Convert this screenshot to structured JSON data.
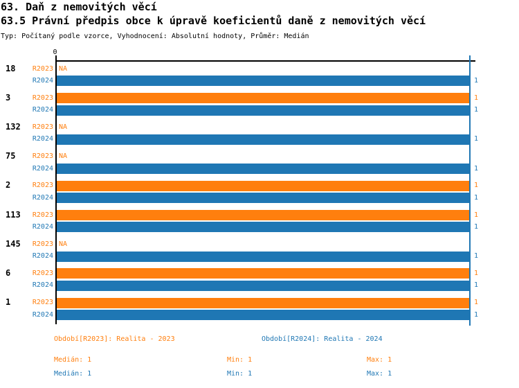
{
  "title": "63. Daň z nemovitých věcí",
  "subtitle": "63.5 Právní předpis obce k úpravě koeficientů daně z nemovitých věcí",
  "meta_line": "Typ: Počítaný podle vzorce, Vyhodnocení: Absolutní hodnoty, Průměr: Medián",
  "colors": {
    "r2023": "#ff7f0e",
    "r2024": "#1f77b4",
    "axis": "#000000"
  },
  "chart_data": {
    "type": "bar",
    "orientation": "horizontal",
    "title": "63.5 Právní předpis obce k úpravě koeficientů daně z nemovitých věcí",
    "xlim": [
      0,
      1
    ],
    "x_tick_labels": [
      "0"
    ],
    "na_label": "NA",
    "categories": [
      "18",
      "3",
      "132",
      "75",
      "2",
      "113",
      "145",
      "6",
      "1"
    ],
    "series": [
      {
        "name": "R2023",
        "color": "#ff7f0e",
        "values": [
          null,
          1,
          null,
          null,
          1,
          1,
          null,
          1,
          1
        ]
      },
      {
        "name": "R2024",
        "color": "#1f77b4",
        "values": [
          1,
          1,
          1,
          1,
          1,
          1,
          1,
          1,
          1
        ]
      }
    ],
    "reference_line": {
      "value": 1,
      "color": "#1f77b4"
    },
    "legend_position": "bottom",
    "grid": false
  },
  "legend": [
    {
      "label": "Období[R2023]: Realita - 2023",
      "color": "#ff7f0e"
    },
    {
      "label": "Období[R2024]: Realita - 2024",
      "color": "#1f77b4"
    }
  ],
  "stats": [
    {
      "series": "R2023",
      "median": "Medián: 1",
      "min": "Min: 1",
      "max": "Max: 1"
    },
    {
      "series": "R2024",
      "median": "Medián: 1",
      "min": "Min: 1",
      "max": "Max: 1"
    }
  ]
}
